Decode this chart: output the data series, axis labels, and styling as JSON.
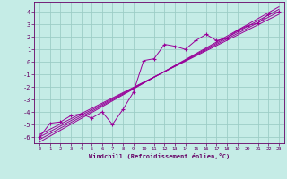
{
  "xlabel": "Windchill (Refroidissement éolien,°C)",
  "background_color": "#c5ece6",
  "grid_color": "#9dcdc6",
  "line_color": "#990099",
  "xlim": [
    -0.5,
    23.5
  ],
  "ylim": [
    -6.5,
    4.8
  ],
  "xticks": [
    0,
    1,
    2,
    3,
    4,
    5,
    6,
    7,
    8,
    9,
    10,
    11,
    12,
    13,
    14,
    15,
    16,
    17,
    18,
    19,
    20,
    21,
    22,
    23
  ],
  "yticks": [
    -6,
    -5,
    -4,
    -3,
    -2,
    -1,
    0,
    1,
    2,
    3,
    4
  ],
  "band_lines": [
    {
      "x": [
        0,
        23
      ],
      "y": [
        -5.8,
        3.8
      ]
    },
    {
      "x": [
        0,
        23
      ],
      "y": [
        -6.0,
        4.0
      ]
    },
    {
      "x": [
        0,
        23
      ],
      "y": [
        -6.2,
        4.2
      ]
    },
    {
      "x": [
        0,
        23
      ],
      "y": [
        -6.4,
        4.4
      ]
    }
  ],
  "marker_line": {
    "x": [
      0,
      1,
      2,
      3,
      4,
      5,
      6,
      7,
      8,
      9,
      10,
      11,
      12,
      13,
      14,
      15,
      16,
      17,
      18,
      19,
      20,
      21,
      22,
      23
    ],
    "y": [
      -6.0,
      -4.9,
      -4.8,
      -4.3,
      -4.15,
      -4.5,
      -4.0,
      -5.0,
      -3.8,
      -2.45,
      0.1,
      0.25,
      1.4,
      1.25,
      1.0,
      1.7,
      2.2,
      1.7,
      1.9,
      2.5,
      2.9,
      3.1,
      3.8,
      4.0
    ]
  }
}
